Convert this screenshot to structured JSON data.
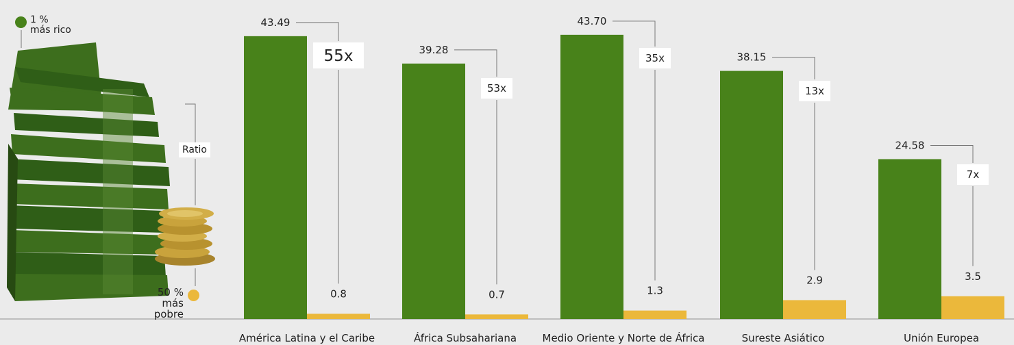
{
  "legend": {
    "rich_line1": "1 %",
    "rich_line2": "más rico",
    "poor_line1": "50 %",
    "poor_line2": "más pobre",
    "ratio_label": "Ratio"
  },
  "colors": {
    "top1": "#48821a",
    "bottom50": "#ebb83b",
    "background": "#ebebeb",
    "axis": "#b0b0b0",
    "leader": "#777777",
    "bill": "#3d6e1d",
    "bill_dark": "#274a12",
    "coin": "#c9a33c"
  },
  "chart_data": {
    "type": "bar",
    "categories": [
      "América Latina y el Caribe",
      "África Subsahariana",
      "Medio Oriente y Norte de África",
      "Sureste Asiático",
      "Unión Europea"
    ],
    "series": [
      {
        "name": "1 % más rico",
        "values": [
          43.49,
          39.28,
          43.7,
          38.15,
          24.58
        ],
        "labels": [
          "43.49",
          "39.28",
          "43.70",
          "38.15",
          "24.58"
        ]
      },
      {
        "name": "50 % más pobre",
        "values": [
          0.8,
          0.7,
          1.3,
          2.9,
          3.5
        ],
        "labels": [
          "0.8",
          "0.7",
          "1.3",
          "2.9",
          "3.5"
        ]
      }
    ],
    "ratios": [
      "55x",
      "53x",
      "35x",
      "13x",
      "7x"
    ],
    "ylim": [
      0,
      45
    ],
    "grid": false
  }
}
